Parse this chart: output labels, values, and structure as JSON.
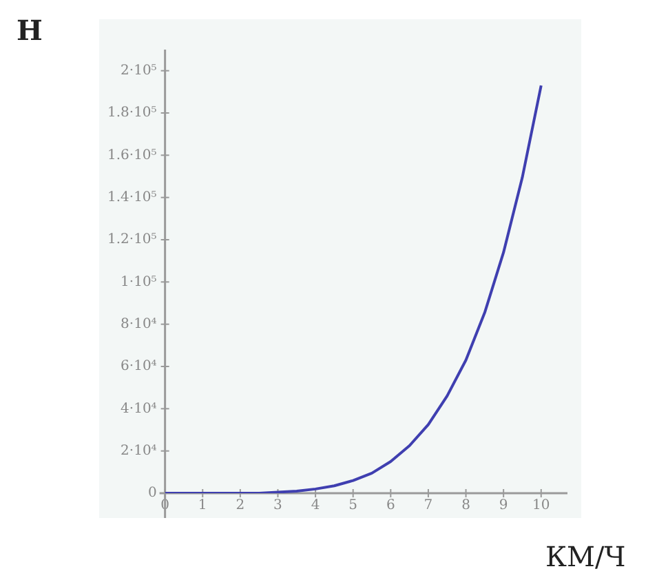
{
  "chart_data": {
    "type": "line",
    "ylabel": "Н",
    "xlabel": "КМ/Ч",
    "x": [
      0,
      0.5,
      1,
      1.5,
      2,
      2.5,
      3,
      3.5,
      4,
      4.5,
      5,
      5.5,
      6,
      6.5,
      7,
      7.5,
      8,
      8.5,
      9,
      9.5,
      10
    ],
    "series": [
      {
        "color": "#3f3fb0",
        "values": [
          0,
          0,
          0,
          0,
          0,
          0,
          500,
          1000,
          2000,
          3500,
          6000,
          9500,
          15000,
          22500,
          32500,
          46000,
          63000,
          85500,
          114000,
          149500,
          193000
        ]
      }
    ],
    "xlim": [
      0,
      10.7
    ],
    "xticks": [
      0,
      1,
      2,
      3,
      4,
      5,
      6,
      7,
      8,
      9,
      10
    ],
    "ylim": [
      0,
      210000
    ],
    "yticks": [
      {
        "value": 0,
        "label": "0"
      },
      {
        "value": 20000,
        "label": "2·10⁴"
      },
      {
        "value": 40000,
        "label": "4·10⁴"
      },
      {
        "value": 60000,
        "label": "6·10⁴"
      },
      {
        "value": 80000,
        "label": "8·10⁴"
      },
      {
        "value": 100000,
        "label": "1·10⁵"
      },
      {
        "value": 120000,
        "label": "1.2·10⁵"
      },
      {
        "value": 140000,
        "label": "1.4·10⁵"
      },
      {
        "value": 160000,
        "label": "1.6·10⁵"
      },
      {
        "value": 180000,
        "label": "1.8·10⁵"
      },
      {
        "value": 200000,
        "label": "2·10⁵"
      }
    ],
    "grid": false,
    "marker": "none",
    "line_style": "solid"
  }
}
